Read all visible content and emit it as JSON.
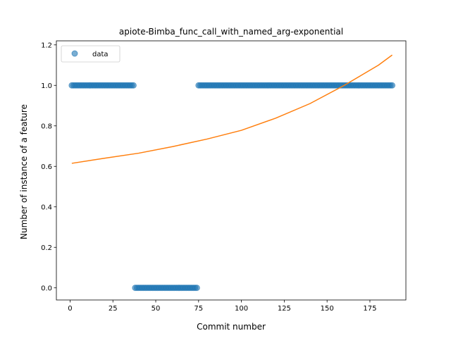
{
  "chart_data": {
    "type": "scatter",
    "title": "apiote-Bimba_func_call_with_named_arg-exponential",
    "xlabel": "Commit number",
    "ylabel": "Number of instance of a feature",
    "xlim": [
      -8,
      196
    ],
    "ylim": [
      -0.06,
      1.22
    ],
    "xticks": [
      0,
      25,
      50,
      75,
      100,
      125,
      150,
      175
    ],
    "yticks": [
      0.0,
      0.2,
      0.4,
      0.6,
      0.8,
      1.0,
      1.2
    ],
    "xtick_labels": [
      "0",
      "25",
      "50",
      "75",
      "100",
      "125",
      "150",
      "175"
    ],
    "ytick_labels": [
      "0.0",
      "0.2",
      "0.4",
      "0.6",
      "0.8",
      "1.0",
      "1.2"
    ],
    "grid": false,
    "legend": {
      "placement": "upper-left",
      "entries": [
        "data"
      ]
    },
    "series": [
      {
        "name": "data",
        "kind": "points",
        "color": "#1f77b4",
        "segments": [
          {
            "x_from": 1,
            "x_to": 37,
            "y": 1
          },
          {
            "x_from": 38,
            "x_to": 74,
            "y": 0
          },
          {
            "x_from": 75,
            "x_to": 188,
            "y": 1
          }
        ]
      },
      {
        "kind": "fit-line",
        "color": "#ff7f0e",
        "x": [
          1,
          20,
          40,
          60,
          80,
          100,
          120,
          140,
          160,
          170,
          180,
          188
        ],
        "y": [
          0.615,
          0.64,
          0.665,
          0.698,
          0.735,
          0.778,
          0.838,
          0.91,
          1.0,
          1.05,
          1.1,
          1.15
        ]
      }
    ]
  }
}
